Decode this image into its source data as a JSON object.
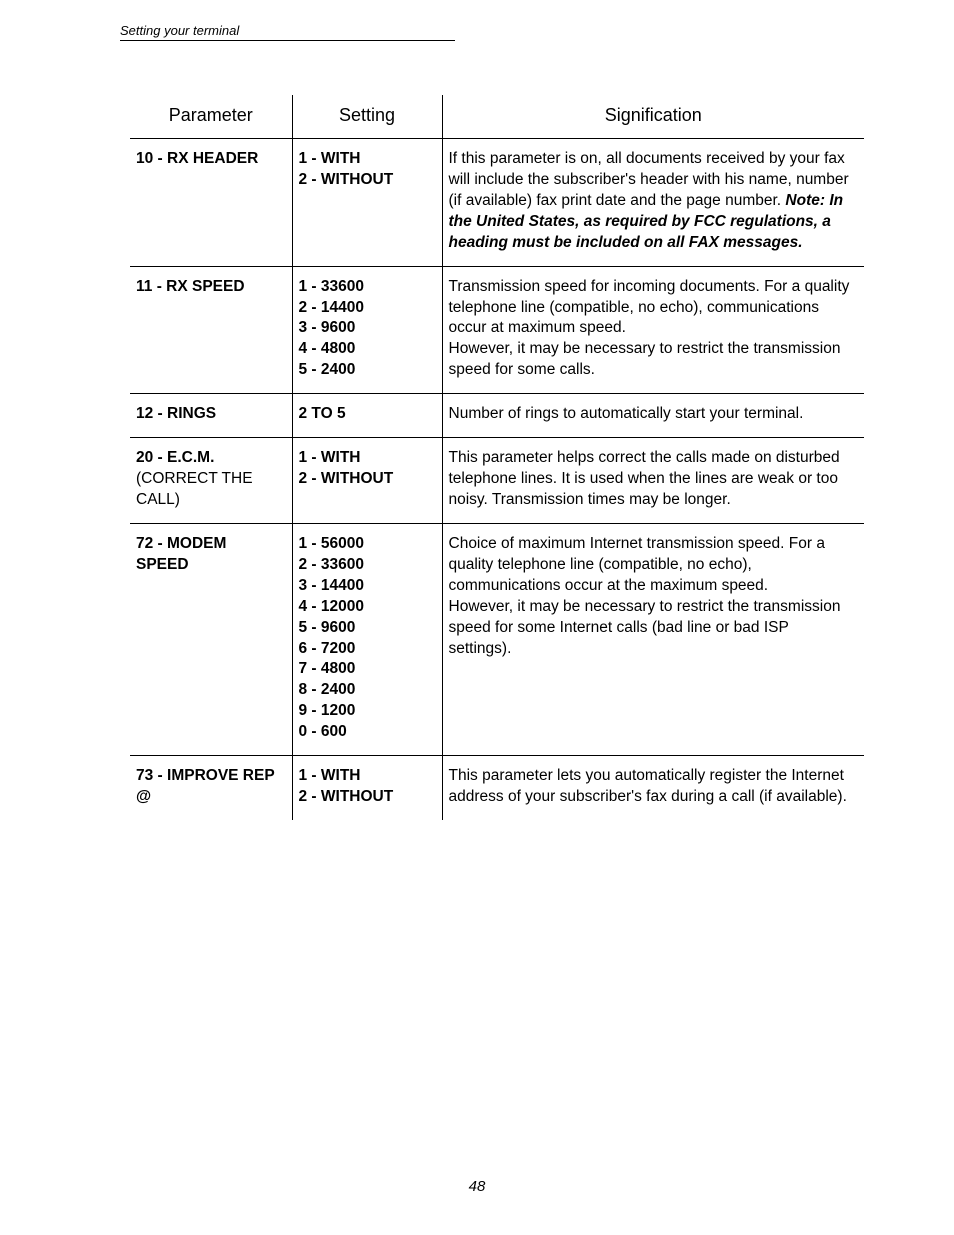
{
  "header": "Setting your terminal",
  "page_number": "48",
  "columns": {
    "parameter": "Parameter",
    "setting": "Setting",
    "signification": "Signification"
  },
  "rows": [
    {
      "param_bold": "10 - RX HEADER",
      "param_plain": "",
      "setting": "1 - WITH\n2 - WITHOUT",
      "sig_pre": "If this parameter is on, all documents received by your fax will include the subscriber's header with his name, number (if available) fax print date and the page number. ",
      "sig_note": "Note: In the United States, as required by FCC regulations, a heading must be included on all FAX messages.",
      "sig_post": ""
    },
    {
      "param_bold": "11 - RX SPEED",
      "param_plain": "",
      "setting": "1 - 33600\n2 - 14400\n3 - 9600\n4 - 4800\n5 - 2400",
      "sig_pre": "Transmission speed for incoming documents. For a quality telephone line (compatible, no echo), communications occur at maximum speed.\nHowever, it may be necessary to restrict the transmission speed for some calls.",
      "sig_note": "",
      "sig_post": ""
    },
    {
      "param_bold": "12 - RINGS",
      "param_plain": "",
      "setting": "2 TO 5",
      "sig_pre": "Number of rings to automatically start your terminal.",
      "sig_note": "",
      "sig_post": ""
    },
    {
      "param_bold": "20 - E.C.M.",
      "param_plain": "(CORRECT THE CALL)",
      "setting": "1 - WITH\n2 - WITHOUT",
      "sig_pre": "This parameter helps correct the calls made on disturbed  telephone lines. It is used when the lines are weak  or  too noisy. Transmission times may be longer.",
      "sig_note": "",
      "sig_post": ""
    },
    {
      "param_bold": "72 - MODEM SPEED",
      "param_plain": "",
      "setting": "1 - 56000\n2 - 33600\n3 - 14400\n4 - 12000\n5 - 9600\n6 - 7200\n7 - 4800\n8 - 2400\n9 - 1200\n0 - 600",
      "sig_pre": "Choice of maximum Internet transmission speed. For a quality telephone line (compatible, no echo), communications occur at the maximum speed.\nHowever, it may be necessary to restrict the transmission speed for some Internet calls (bad line or bad ISP settings).",
      "sig_note": "",
      "sig_post": ""
    },
    {
      "param_bold": "73 - IMPROVE REP @",
      "param_plain": "",
      "setting": "1 - WITH\n2 - WITHOUT",
      "sig_pre": "This parameter lets you automatically register the Internet address of your subscriber's fax during a call (if available).",
      "sig_note": "",
      "sig_post": ""
    }
  ]
}
